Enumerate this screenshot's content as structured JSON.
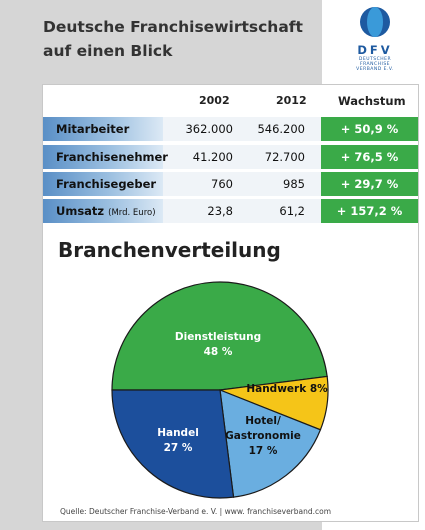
{
  "header": {
    "title_line1": "Deutsche Franchisewirtschaft",
    "title_line2": "auf einen Blick"
  },
  "logo": {
    "name": "DFV",
    "sub_line1": "DEUTSCHER",
    "sub_line2": "FRANCHISE",
    "sub_line3": "VERBAND E.V.",
    "colors": {
      "dark": "#1e5aa0",
      "light": "#3a9ad9"
    }
  },
  "table": {
    "headers": {
      "col1": "2002",
      "col2": "2012",
      "col3": "Wachstum"
    },
    "rows": [
      {
        "label": "Mitarbeiter",
        "suffix": "",
        "v2002": "362.000",
        "v2012": "546.200",
        "growth": "+ 50,9 %"
      },
      {
        "label": "Franchisenehmer",
        "suffix": "",
        "v2002": "41.200",
        "v2012": "72.700",
        "growth": "+ 76,5 %"
      },
      {
        "label": "Franchisegeber",
        "suffix": "",
        "v2002": "760",
        "v2012": "985",
        "growth": "+ 29,7 %"
      },
      {
        "label": "Umsatz",
        "suffix": "(Mrd. Euro)",
        "v2002": "23,8",
        "v2012": "61,2",
        "growth": "+ 157,2 %"
      }
    ],
    "colors": {
      "growth_bg": "#3aaa48",
      "label_gradient_start": "#5a8fc6"
    }
  },
  "section_title": "Branchenverteilung",
  "chart_data": {
    "type": "pie",
    "title": "Branchenverteilung",
    "slices": [
      {
        "name": "Dienstleistung",
        "value": 48,
        "label": "48 %",
        "color": "#3aaa48"
      },
      {
        "name": "Handwerk",
        "value": 8,
        "label": "8%",
        "color": "#f5c518"
      },
      {
        "name": "Hotel/ Gastronomie",
        "value": 17,
        "label": "17 %",
        "color": "#6aaee0"
      },
      {
        "name": "Handel",
        "value": 27,
        "label": "27 %",
        "color": "#1c4f9c"
      }
    ]
  },
  "source": "Quelle: Deutscher Franchise-Verband e. V. | www. franchiseverband.com"
}
